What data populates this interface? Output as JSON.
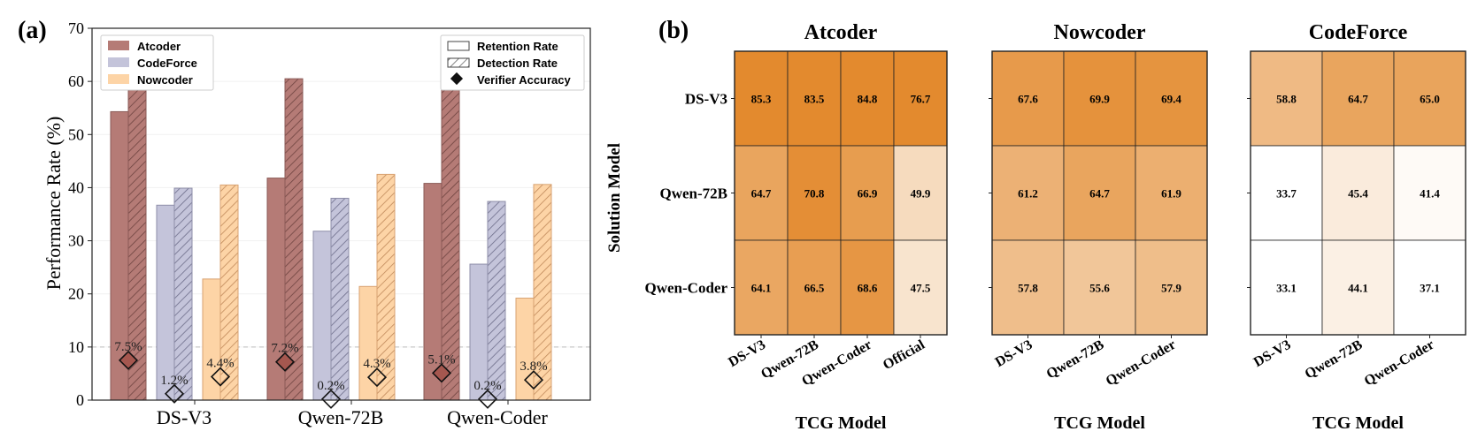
{
  "panel_labels": [
    "(a)",
    "(b)"
  ],
  "colors": {
    "atcoder": "#b57b76",
    "codeforce": "#c4c4da",
    "nowcoder": "#fdd4a6",
    "atcoder_edge": "#8a5a56",
    "codeforce_edge": "#8e8ea8",
    "nowcoder_edge": "#d8a271",
    "verifier": "#a5574f",
    "heat_low": "#ffffff",
    "heat_high": "#e38a2e"
  },
  "chart_data": [
    {
      "type": "bar",
      "title": "",
      "xlabel": "",
      "ylabel": "Performance Rate (%)",
      "ylim": [
        0,
        70
      ],
      "yticks": [
        "0",
        "10",
        "20",
        "30",
        "40",
        "50",
        "60",
        "70"
      ],
      "categories": [
        "DS-V3",
        "Qwen-72B",
        "Qwen-Coder"
      ],
      "series": [
        {
          "name": "Atcoder",
          "metric": "Retention Rate",
          "values": [
            54.3,
            41.8,
            40.8
          ]
        },
        {
          "name": "Atcoder",
          "metric": "Detection Rate",
          "values": [
            60.5,
            60.5,
            60.5
          ]
        },
        {
          "name": "CodeForce",
          "metric": "Retention Rate",
          "values": [
            36.7,
            31.8,
            25.6
          ]
        },
        {
          "name": "CodeForce",
          "metric": "Detection Rate",
          "values": [
            39.9,
            38.0,
            37.4
          ]
        },
        {
          "name": "Nowcoder",
          "metric": "Retention Rate",
          "values": [
            22.8,
            21.4,
            19.2
          ]
        },
        {
          "name": "Nowcoder",
          "metric": "Detection Rate",
          "values": [
            40.5,
            42.5,
            40.6
          ]
        }
      ],
      "verifier_accuracy": [
        {
          "source": "Atcoder",
          "values": [
            7.5,
            7.2,
            5.1
          ],
          "labels": [
            "7.5%",
            "7.2%",
            "5.1%"
          ]
        },
        {
          "source": "CodeForce",
          "values": [
            1.2,
            0.2,
            0.2
          ],
          "labels": [
            "1.2%",
            "0.2%",
            "0.2%"
          ]
        },
        {
          "source": "Nowcoder",
          "values": [
            4.4,
            4.3,
            3.8
          ],
          "labels": [
            "4.4%",
            "4.3%",
            "3.8%"
          ]
        }
      ],
      "reference_line": 10,
      "legend_sources": [
        "Atcoder",
        "CodeForce",
        "Nowcoder"
      ],
      "legend_metrics": [
        "Retention Rate",
        "Detection Rate",
        "Verifier Accuracy"
      ]
    },
    {
      "type": "heatmap",
      "ylabel": "Solution Model",
      "rows": [
        "DS-V3",
        "Qwen-72B",
        "Qwen-Coder"
      ],
      "subplots": [
        {
          "title": "Atcoder",
          "xlabel": "TCG Model",
          "columns": [
            "DS-V3",
            "Qwen-72B",
            "Qwen-Coder",
            "Official"
          ],
          "values": [
            [
              85.3,
              83.5,
              84.8,
              76.7
            ],
            [
              64.7,
              70.8,
              66.9,
              49.9
            ],
            [
              64.1,
              66.5,
              68.6,
              47.5
            ]
          ]
        },
        {
          "title": "Nowcoder",
          "xlabel": "TCG Model",
          "columns": [
            "DS-V3",
            "Qwen-72B",
            "Qwen-Coder"
          ],
          "values": [
            [
              67.6,
              69.9,
              69.4
            ],
            [
              61.2,
              64.7,
              61.9
            ],
            [
              57.8,
              55.6,
              57.9
            ]
          ]
        },
        {
          "title": "CodeForce",
          "xlabel": "TCG Model",
          "columns": [
            "DS-V3",
            "Qwen-72B",
            "Qwen-Coder"
          ],
          "values": [
            [
              58.8,
              64.7,
              65.0
            ],
            [
              33.7,
              45.4,
              41.4
            ],
            [
              33.1,
              44.1,
              37.1
            ]
          ]
        }
      ]
    }
  ]
}
